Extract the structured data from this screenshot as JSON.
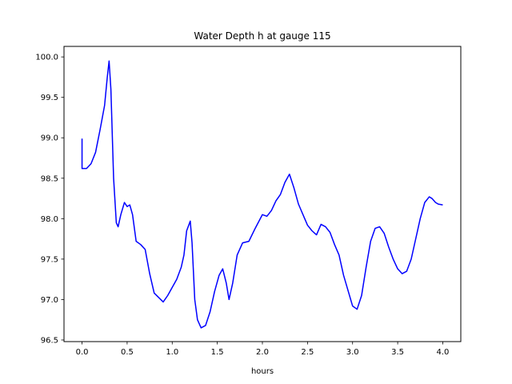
{
  "chart_data": {
    "type": "line",
    "title": "Water Depth h at gauge 115",
    "xlabel": "hours",
    "ylabel": "",
    "xlim": [
      -0.2,
      4.2
    ],
    "ylim": [
      96.48,
      100.13
    ],
    "xticks": [
      0.0,
      0.5,
      1.0,
      1.5,
      2.0,
      2.5,
      3.0,
      3.5,
      4.0
    ],
    "xtick_labels": [
      "0.0",
      "0.5",
      "1.0",
      "1.5",
      "2.0",
      "2.5",
      "3.0",
      "3.5",
      "4.0"
    ],
    "yticks": [
      96.5,
      97.0,
      97.5,
      98.0,
      98.5,
      99.0,
      99.5,
      100.0
    ],
    "ytick_labels": [
      "96.5",
      "97.0",
      "97.5",
      "98.0",
      "98.5",
      "99.0",
      "99.5",
      "100.0"
    ],
    "grid": false,
    "series": [
      {
        "color": "#0000ff",
        "x": [
          0.0,
          0.0,
          0.05,
          0.1,
          0.15,
          0.2,
          0.25,
          0.28,
          0.3,
          0.32,
          0.35,
          0.38,
          0.4,
          0.43,
          0.47,
          0.5,
          0.53,
          0.56,
          0.6,
          0.65,
          0.7,
          0.75,
          0.8,
          0.9,
          0.95,
          1.0,
          1.05,
          1.1,
          1.13,
          1.16,
          1.2,
          1.22,
          1.25,
          1.28,
          1.32,
          1.37,
          1.42,
          1.47,
          1.52,
          1.56,
          1.6,
          1.63,
          1.67,
          1.72,
          1.78,
          1.85,
          1.92,
          2.0,
          2.05,
          2.1,
          2.15,
          2.2,
          2.25,
          2.3,
          2.35,
          2.4,
          2.5,
          2.55,
          2.6,
          2.65,
          2.7,
          2.75,
          2.8,
          2.85,
          2.9,
          3.0,
          3.05,
          3.1,
          3.15,
          3.2,
          3.25,
          3.3,
          3.35,
          3.4,
          3.45,
          3.5,
          3.55,
          3.6,
          3.65,
          3.7,
          3.75,
          3.8,
          3.85,
          3.88,
          3.92,
          3.95,
          4.0
        ],
        "y": [
          98.99,
          98.62,
          98.62,
          98.68,
          98.82,
          99.1,
          99.4,
          99.75,
          99.95,
          99.6,
          98.5,
          97.95,
          97.9,
          98.05,
          98.2,
          98.15,
          98.17,
          98.05,
          97.72,
          97.68,
          97.62,
          97.32,
          97.08,
          96.97,
          97.05,
          97.15,
          97.25,
          97.4,
          97.55,
          97.85,
          97.97,
          97.7,
          97.0,
          96.75,
          96.65,
          96.68,
          96.85,
          97.1,
          97.3,
          97.38,
          97.2,
          97.0,
          97.2,
          97.55,
          97.7,
          97.72,
          97.88,
          98.05,
          98.03,
          98.1,
          98.22,
          98.3,
          98.45,
          98.55,
          98.38,
          98.18,
          97.92,
          97.85,
          97.8,
          97.93,
          97.9,
          97.83,
          97.68,
          97.55,
          97.3,
          96.92,
          96.88,
          97.05,
          97.4,
          97.72,
          97.88,
          97.9,
          97.82,
          97.65,
          97.5,
          97.38,
          97.32,
          97.35,
          97.5,
          97.75,
          98.0,
          98.2,
          98.27,
          98.25,
          98.2,
          98.18,
          98.17
        ]
      }
    ]
  }
}
